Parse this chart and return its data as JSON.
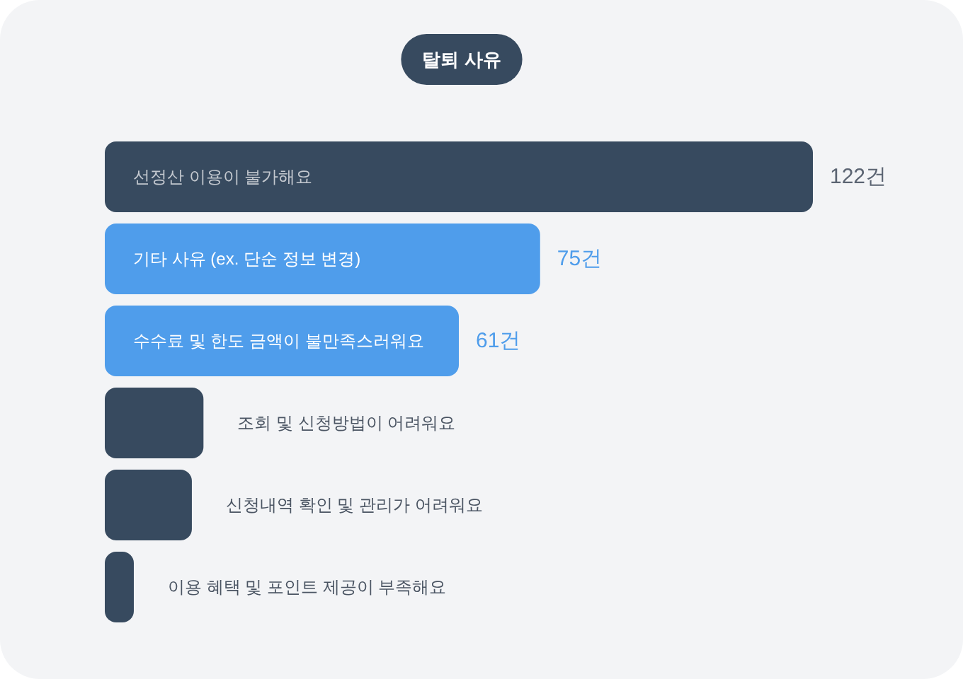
{
  "chart_data": {
    "type": "bar",
    "orientation": "horizontal",
    "title": "탈퇴 사유",
    "categories": [
      "선정산 이용이 불가해요",
      "기타 사유 (ex. 단순 정보 변경)",
      "수수료 및 한도 금액이 불만족스러워요",
      "조회 및 신청방법이 어려워요",
      "신청내역 확인 및 관리가 어려워요",
      "이용 혜택 및 포인트 제공이 부족해요"
    ],
    "values": [
      122,
      75,
      61,
      17,
      15,
      5
    ],
    "colors": [
      "#374a5f",
      "#4f9deb",
      "#4f9deb",
      "#374a5f",
      "#374a5f",
      "#374a5f"
    ],
    "value_labels": [
      "122건",
      "75건",
      "61건",
      null,
      null,
      null
    ]
  }
}
